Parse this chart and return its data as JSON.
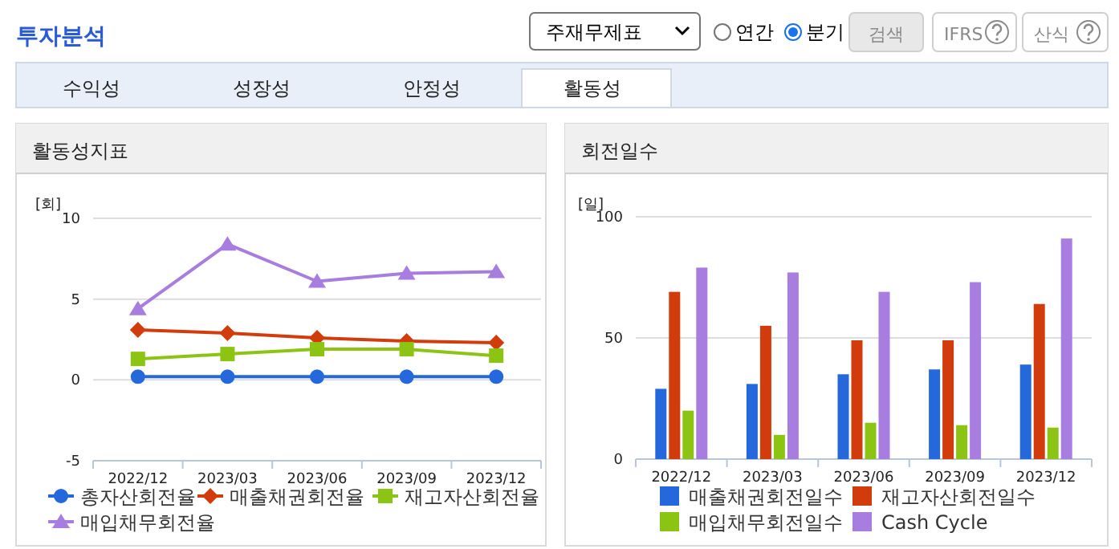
{
  "chart_data": [
    {
      "type": "other",
      "title": "투자분석",
      "annotations": [
        "주재무제표",
        "연간",
        "분기",
        "검색",
        "IFRS",
        "산식",
        "수익성",
        "성장성",
        "안정성",
        "활동성"
      ]
    },
    {
      "type": "line",
      "title": "활동성지표",
      "ylabel": "[회]",
      "categories": [
        "2022/12",
        "2023/03",
        "2023/06",
        "2023/09",
        "2023/12"
      ],
      "ylim": [
        -5,
        10
      ],
      "yticks": [
        -5,
        0,
        5,
        10
      ],
      "grid": "y",
      "legend": "bottom",
      "series": [
        {
          "name": "총자산회전율",
          "color": "#2468dc",
          "marker": "circle",
          "values": [
            0.2,
            0.2,
            0.2,
            0.2,
            0.2
          ]
        },
        {
          "name": "매출채권회전율",
          "color": "#d23c0c",
          "marker": "diamond",
          "values": [
            3.1,
            2.9,
            2.6,
            2.4,
            2.3
          ]
        },
        {
          "name": "재고자산회전율",
          "color": "#8cc414",
          "marker": "square",
          "values": [
            1.3,
            1.6,
            1.9,
            1.9,
            1.5
          ]
        },
        {
          "name": "매입채무회전율",
          "color": "#a77de0",
          "marker": "triangle",
          "values": [
            4.4,
            8.4,
            6.1,
            6.6,
            6.7
          ]
        }
      ]
    },
    {
      "type": "bar",
      "title": "회전일수",
      "ylabel": "[일]",
      "categories": [
        "2022/12",
        "2023/03",
        "2023/06",
        "2023/09",
        "2023/12"
      ],
      "ylim": [
        0,
        100
      ],
      "yticks": [
        0,
        50,
        100
      ],
      "grid": "y",
      "legend": "bottom",
      "series": [
        {
          "name": "매출채권회전일수",
          "color": "#2468dc",
          "values": [
            29,
            31,
            35,
            37,
            39
          ]
        },
        {
          "name": "재고자산회전일수",
          "color": "#d23c0c",
          "values": [
            69,
            55,
            49,
            49,
            64
          ]
        },
        {
          "name": "매입채무회전일수",
          "color": "#8cc414",
          "values": [
            20,
            10,
            15,
            14,
            13
          ]
        },
        {
          "name": "Cash Cycle",
          "color": "#a77de0",
          "values": [
            79,
            77,
            69,
            73,
            91
          ]
        }
      ]
    }
  ]
}
